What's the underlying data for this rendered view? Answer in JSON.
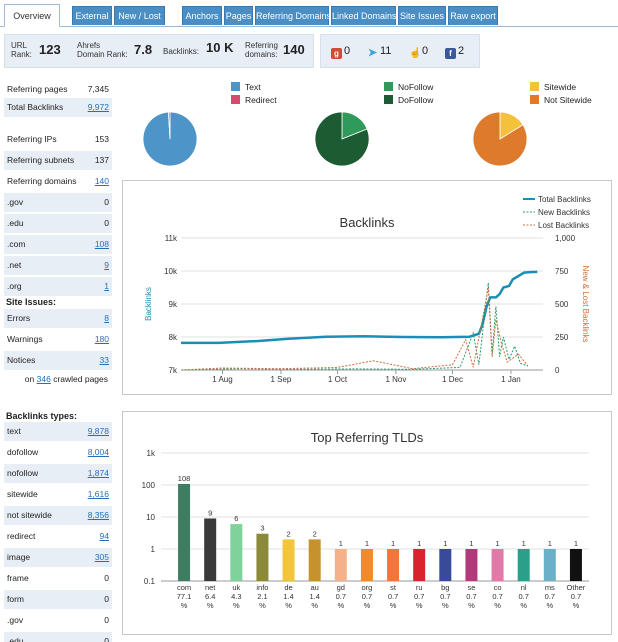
{
  "tabs": [
    {
      "label": "Overview",
      "active": true
    },
    {
      "label": "External"
    },
    {
      "label": "New / Lost"
    },
    {
      "label": "Anchors"
    },
    {
      "label": "Pages"
    },
    {
      "label": "Referring Domains"
    },
    {
      "label": "Linked Domains"
    },
    {
      "label": "Site Issues"
    },
    {
      "label": "Raw export"
    }
  ],
  "stats": {
    "url_rank_label1": "URL",
    "url_rank_label2": "Rank:",
    "url_rank": "123",
    "domain_rank_label1": "Ahrefs",
    "domain_rank_label2": "Domain Rank:",
    "domain_rank": "7.8",
    "backlinks_label": "Backlinks:",
    "backlinks": "10 K",
    "ref_domains_label1": "Referring",
    "ref_domains_label2": "domains:",
    "ref_domains": "140"
  },
  "social": {
    "gplus": "0",
    "twitter": "11",
    "like": "0",
    "facebook": "2"
  },
  "summary": [
    {
      "label": "Referring pages",
      "value": "7,345",
      "link": false
    },
    {
      "label": "Total Backlinks",
      "value": "9,972",
      "link": true
    }
  ],
  "referring": [
    {
      "label": "Referring IPs",
      "value": "153",
      "link": false
    },
    {
      "label": "Referring subnets",
      "value": "137",
      "link": false
    },
    {
      "label": "Referring domains",
      "value": "140",
      "link": true
    },
    {
      "label": ".gov",
      "value": "0",
      "link": false
    },
    {
      "label": ".edu",
      "value": "0",
      "link": false
    },
    {
      "label": ".com",
      "value": "108",
      "link": true
    },
    {
      "label": ".net",
      "value": "9",
      "link": true
    },
    {
      "label": ".org",
      "value": "1",
      "link": true
    }
  ],
  "site_issues": {
    "title": "Site Issues:",
    "rows": [
      {
        "label": "Errors",
        "value": "8"
      },
      {
        "label": "Warnings",
        "value": "180"
      },
      {
        "label": "Notices",
        "value": "33"
      }
    ],
    "crawl_prefix": "on",
    "crawl_count": "346",
    "crawl_suffix": "crawled pages"
  },
  "backlink_types": {
    "title": "Backlinks types:",
    "rows": [
      {
        "label": "text",
        "value": "9,878",
        "link": true
      },
      {
        "label": "dofollow",
        "value": "8,004",
        "link": true
      },
      {
        "label": "nofollow",
        "value": "1,874",
        "link": true
      },
      {
        "label": "sitewide",
        "value": "1,616",
        "link": true
      },
      {
        "label": "not sitewide",
        "value": "8,356",
        "link": true
      },
      {
        "label": "redirect",
        "value": "94",
        "link": true
      },
      {
        "label": "image",
        "value": "305",
        "link": true
      },
      {
        "label": "frame",
        "value": "0",
        "link": false
      },
      {
        "label": "form",
        "value": "0",
        "link": false
      },
      {
        "label": ".gov",
        "value": "0",
        "link": false
      },
      {
        "label": ".edu",
        "value": "0",
        "link": false
      }
    ]
  },
  "pie_legend": [
    {
      "label": "Text",
      "color": "#4d94c9"
    },
    {
      "label": "Redirect",
      "color": "#d44b6e"
    },
    {
      "label": "NoFollow",
      "color": "#2f9a5a"
    },
    {
      "label": "DoFollow",
      "color": "#1d5b33"
    },
    {
      "label": "Sitewide",
      "color": "#f3c13a"
    },
    {
      "label": "Not Sitewide",
      "color": "#dd7a2c"
    }
  ],
  "pies": [
    {
      "name": "text-redirect",
      "slices": [
        {
          "label": "Text",
          "value": 9878,
          "color": "#4d94c9"
        },
        {
          "label": "Redirect",
          "value": 94,
          "color": "#d44b6e"
        }
      ]
    },
    {
      "name": "nofollow-dofollow",
      "slices": [
        {
          "label": "NoFollow",
          "value": 1874,
          "color": "#2f9a5a"
        },
        {
          "label": "DoFollow",
          "value": 8004,
          "color": "#1d5b33"
        }
      ]
    },
    {
      "name": "sitewide",
      "slices": [
        {
          "label": "Sitewide",
          "value": 1616,
          "color": "#f3c13a"
        },
        {
          "label": "Not Sitewide",
          "value": 8356,
          "color": "#dd7a2c"
        }
      ]
    }
  ],
  "chart_data": [
    {
      "type": "line",
      "title": "Backlinks",
      "ylabel": "Backlinks",
      "y2label": "New & Lost Backlinks",
      "yticks": [
        "7k",
        "8k",
        "9k",
        "10k",
        "11k"
      ],
      "ylim": [
        7000,
        11000
      ],
      "y2ticks": [
        "0",
        "250",
        "500",
        "750",
        "1,000"
      ],
      "y2lim": [
        0,
        1000
      ],
      "xticks": [
        "1 Aug",
        "1 Sep",
        "1 Oct",
        "1 Nov",
        "1 Dec",
        "1 Jan"
      ],
      "xlim": [
        "2013-07-10",
        "2014-01-18"
      ],
      "legend": [
        "Total Backlinks",
        "New Backlinks",
        "Lost Backlinks"
      ],
      "colors": {
        "total": "#1a8fb5",
        "new": "#2a9a6a",
        "lost": "#c9703a"
      },
      "series": [
        {
          "name": "Total Backlinks",
          "axis": "left",
          "points": [
            [
              "2013-07-10",
              7820
            ],
            [
              "2013-07-30",
              7820
            ],
            [
              "2013-08-20",
              7880
            ],
            [
              "2013-09-05",
              7950
            ],
            [
              "2013-09-25",
              8010
            ],
            [
              "2013-10-15",
              8020
            ],
            [
              "2013-11-05",
              8000
            ],
            [
              "2013-11-25",
              7990
            ],
            [
              "2013-12-10",
              8010
            ],
            [
              "2013-12-15",
              8100
            ],
            [
              "2013-12-17",
              8400
            ],
            [
              "2013-12-19",
              8900
            ],
            [
              "2013-12-21",
              9200
            ],
            [
              "2013-12-24",
              9200
            ],
            [
              "2013-12-26",
              9300
            ],
            [
              "2013-12-28",
              9500
            ],
            [
              "2013-12-31",
              9550
            ],
            [
              "2014-01-02",
              9750
            ],
            [
              "2014-01-05",
              9850
            ],
            [
              "2014-01-08",
              9950
            ],
            [
              "2014-01-12",
              9970
            ],
            [
              "2014-01-15",
              9972
            ]
          ]
        },
        {
          "name": "New Backlinks",
          "axis": "right",
          "points": [
            [
              "2013-07-10",
              0
            ],
            [
              "2013-08-10",
              10
            ],
            [
              "2013-09-10",
              5
            ],
            [
              "2013-10-10",
              8
            ],
            [
              "2013-11-10",
              5
            ],
            [
              "2013-12-05",
              20
            ],
            [
              "2013-12-12",
              280
            ],
            [
              "2013-12-15",
              40
            ],
            [
              "2013-12-20",
              660
            ],
            [
              "2013-12-22",
              120
            ],
            [
              "2013-12-24",
              480
            ],
            [
              "2013-12-26",
              100
            ],
            [
              "2013-12-28",
              250
            ],
            [
              "2013-12-31",
              80
            ],
            [
              "2014-01-03",
              180
            ],
            [
              "2014-01-06",
              50
            ],
            [
              "2014-01-10",
              30
            ]
          ]
        },
        {
          "name": "Lost Backlinks",
          "axis": "right",
          "points": [
            [
              "2013-07-10",
              0
            ],
            [
              "2013-08-01",
              15
            ],
            [
              "2013-09-01",
              10
            ],
            [
              "2013-10-01",
              20
            ],
            [
              "2013-10-20",
              70
            ],
            [
              "2013-11-10",
              10
            ],
            [
              "2013-12-01",
              40
            ],
            [
              "2013-12-08",
              230
            ],
            [
              "2013-12-12",
              20
            ],
            [
              "2013-12-20",
              620
            ],
            [
              "2013-12-22",
              100
            ],
            [
              "2013-12-24",
              380
            ],
            [
              "2013-12-27",
              200
            ],
            [
              "2013-12-30",
              60
            ],
            [
              "2014-01-05",
              120
            ],
            [
              "2014-01-10",
              30
            ]
          ]
        }
      ]
    },
    {
      "type": "bar",
      "title": "Top Referring TLDs",
      "log_scale": true,
      "yticks": [
        "0.1",
        "1",
        "10",
        "100",
        "1k"
      ],
      "ylim": [
        0.1,
        1000
      ],
      "categories": [
        "com",
        "net",
        "uk",
        "info",
        "de",
        "au",
        "gd",
        "org",
        "st",
        "ru",
        "bg",
        "se",
        "co",
        "nl",
        "ms",
        "Other"
      ],
      "values": [
        108,
        9,
        6,
        3,
        2,
        2,
        1,
        1,
        1,
        1,
        1,
        1,
        1,
        1,
        1,
        1
      ],
      "percents": [
        "77.1",
        "6.4",
        "4.3",
        "2.1",
        "1.4",
        "1.4",
        "0.7",
        "0.7",
        "0.7",
        "0.7",
        "0.7",
        "0.7",
        "0.7",
        "0.7",
        "0.7",
        "0.7"
      ],
      "percent_unit": "%",
      "colors": [
        "#3f7d63",
        "#3a3a3a",
        "#7fd29a",
        "#8a8a3a",
        "#f2c53a",
        "#c6922e",
        "#f5b28a",
        "#f08a2e",
        "#f5743a",
        "#d9232e",
        "#3a4a9a",
        "#b03a7a",
        "#e07aa8",
        "#2aa08a",
        "#6ab0c8",
        "#111111"
      ]
    }
  ]
}
